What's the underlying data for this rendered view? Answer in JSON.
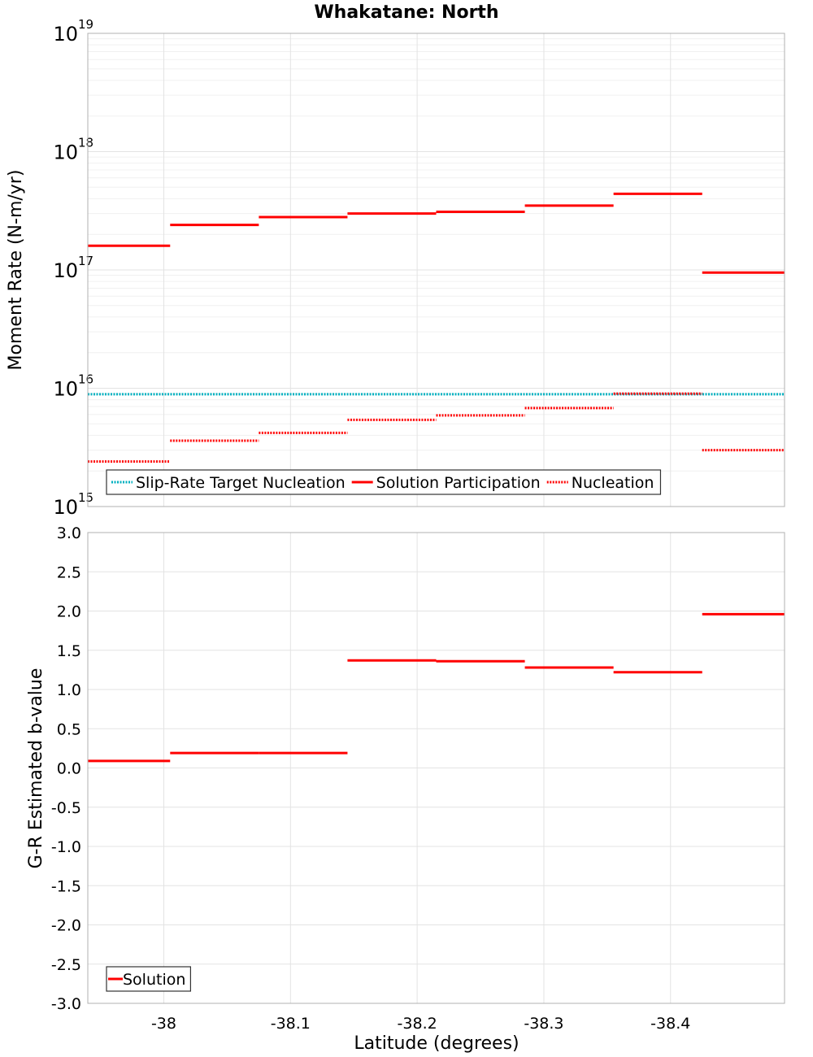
{
  "title": "Whakatane: North",
  "colors": {
    "solution": "#ff0000",
    "target": "#00b0c0",
    "grid_major": "#e3e3e3",
    "grid_minor": "#f0f0f0",
    "frame": "#b0b0b0",
    "text": "#000000"
  },
  "chart_data": [
    {
      "type": "line",
      "panel": "top",
      "title": "Whakatane: North",
      "xlabel": "",
      "ylabel": "Moment Rate (N-m/yr)",
      "yscale": "log",
      "ylim": [
        1000000000000000.0,
        1e+19
      ],
      "xlim": [
        -37.94,
        -38.49
      ],
      "y_ticks": [
        {
          "base": "10",
          "exp": "15",
          "value": 1000000000000000.0
        },
        {
          "base": "10",
          "exp": "16",
          "value": 1e+16
        },
        {
          "base": "10",
          "exp": "17",
          "value": 1e+17
        },
        {
          "base": "10",
          "exp": "18",
          "value": 1e+18
        },
        {
          "base": "10",
          "exp": "19",
          "value": 1e+19
        }
      ],
      "legend": {
        "position": "bottom-left",
        "entries": [
          {
            "label": "Slip-Rate Target Nucleation",
            "style": "dotted",
            "color": "#00b0c0"
          },
          {
            "label": "Solution Participation",
            "style": "solid",
            "color": "#ff0000"
          },
          {
            "label": "Nucleation",
            "style": "dotted",
            "color": "#ff0000"
          }
        ]
      },
      "series": [
        {
          "name": "Slip-Rate Target Nucleation",
          "style": "dotted",
          "color": "#00b0c0",
          "segments": [
            [
              -37.94,
              -38.49,
              8900000000000000.0
            ]
          ]
        },
        {
          "name": "Solution Participation",
          "style": "solid",
          "color": "#ff0000",
          "segments": [
            [
              -37.94,
              -38.005,
              1.6e+17
            ],
            [
              -38.005,
              -38.075,
              2.4e+17
            ],
            [
              -38.075,
              -38.145,
              2.8e+17
            ],
            [
              -38.145,
              -38.215,
              3e+17
            ],
            [
              -38.215,
              -38.285,
              3.1e+17
            ],
            [
              -38.285,
              -38.355,
              3.5e+17
            ],
            [
              -38.355,
              -38.425,
              4.4e+17
            ],
            [
              -38.425,
              -38.49,
              9.5e+16
            ]
          ]
        },
        {
          "name": "Nucleation",
          "style": "dotted",
          "color": "#ff0000",
          "segments": [
            [
              -37.94,
              -38.005,
              2400000000000000.0
            ],
            [
              -38.005,
              -38.075,
              3600000000000000.0
            ],
            [
              -38.075,
              -38.145,
              4200000000000000.0
            ],
            [
              -38.145,
              -38.215,
              5400000000000000.0
            ],
            [
              -38.215,
              -38.285,
              5900000000000000.0
            ],
            [
              -38.285,
              -38.355,
              6800000000000000.0
            ],
            [
              -38.355,
              -38.425,
              9000000000000000.0
            ],
            [
              -38.425,
              -38.49,
              3000000000000000.0
            ]
          ]
        }
      ]
    },
    {
      "type": "line",
      "panel": "bottom",
      "xlabel": "Latitude (degrees)",
      "ylabel": "G-R Estimated b-value",
      "yscale": "linear",
      "ylim": [
        -3.0,
        3.0
      ],
      "xlim": [
        -37.94,
        -38.49
      ],
      "y_ticks": [
        "-3.0",
        "-2.5",
        "-2.0",
        "-1.5",
        "-1.0",
        "-0.5",
        "0.0",
        "0.5",
        "1.0",
        "1.5",
        "2.0",
        "2.5",
        "3.0"
      ],
      "x_ticks": [
        "-38",
        "-38.1",
        "-38.2",
        "-38.3",
        "-38.4"
      ],
      "legend": {
        "position": "bottom-left",
        "entries": [
          {
            "label": "Solution",
            "style": "solid",
            "color": "#ff0000"
          }
        ]
      },
      "series": [
        {
          "name": "Solution",
          "style": "solid",
          "color": "#ff0000",
          "segments": [
            [
              -37.94,
              -38.005,
              0.09
            ],
            [
              -38.005,
              -38.075,
              0.19
            ],
            [
              -38.075,
              -38.145,
              0.19
            ],
            [
              -38.145,
              -38.215,
              1.37
            ],
            [
              -38.215,
              -38.285,
              1.36
            ],
            [
              -38.285,
              -38.355,
              1.28
            ],
            [
              -38.355,
              -38.425,
              1.22
            ],
            [
              -38.425,
              -38.49,
              1.96
            ]
          ]
        }
      ]
    }
  ]
}
